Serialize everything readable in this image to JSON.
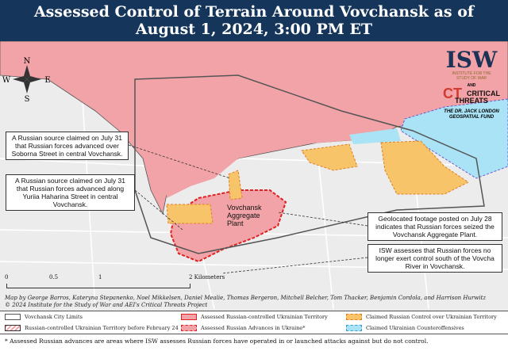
{
  "title": {
    "line1": "Assessed Control of Terrain Around Vovchansk as of",
    "line2": "August 1, 2024, 3:00 PM ET"
  },
  "compass": {
    "n": "N",
    "s": "S",
    "e": "E",
    "w": "W"
  },
  "logos": {
    "isw": "ISW",
    "isw_sub1": "INSTITUTE FOR THE",
    "isw_sub2": "STUDY OF WAR",
    "and": "AND",
    "ct_mark": "CT",
    "ct1": "CRITICAL",
    "ct2": "THREATS",
    "fund1": "THE DR. JACK LONDON",
    "fund2": "GEOSPATIAL FUND"
  },
  "callouts": [
    "A Russian source claimed on July 31 that Russian forces advanced over Soborna Street in central Vovchansk.",
    "A Russian source claimed on July 31 that Russian forces advanced along Yuriia Haharina Street in central Vovchansk.",
    "Geolocated footage posted on July 28 indicates that Russian forces seized the Vovchansk Aggregate Plant.",
    "ISW assesses that Russian forces no longer exert control south of the Vovcha River in Vovchansk."
  ],
  "plant_label": "Vovchansk Aggregate Plant",
  "scale": {
    "ticks": [
      "0",
      "0.5",
      "1",
      "2 Kilometers"
    ]
  },
  "credits": {
    "line1": "Map by George Barros, Kateryna Stepanenko, Noel Mikkelsen, Daniel Mealie, Thomas Bergeron, Mitchell Belcher, Tom Thacker, Benjamin Cordola, and Harrison Hurwitz",
    "line2": "© 2024 Institute for the Study of War and AEI's Critical Threats Project"
  },
  "legend": [
    {
      "label": "Vovchansk City Limits"
    },
    {
      "label": "Russian-controlled Ukrainian Territory before February 24"
    },
    {
      "label": "Assessed Russian-controlled Ukrainian Territory"
    },
    {
      "label": "Assessed Russian Advances in Ukraine*"
    },
    {
      "label": "Claimed Russian Control over Ukrainian Territory"
    },
    {
      "label": "Claimed Ukrainian Counteroffensives"
    }
  ],
  "colors": {
    "russian": "#f2a3a8",
    "advance_border": "#e02020",
    "claimed_russian": "#f7c46a",
    "ukrainian_cf": "#a9e3f5",
    "title_bg": "#15365a"
  },
  "footnote": "* Assessed Russian advances are areas where ISW assesses Russian forces have operated in or launched attacks against but do not control."
}
